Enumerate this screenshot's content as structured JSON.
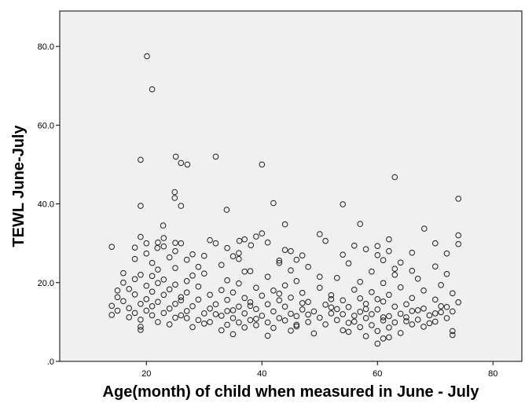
{
  "chart_data": {
    "type": "scatter",
    "title": "",
    "xlabel": "Age(month) of child when measured in June - July",
    "ylabel": "TEWL June-July",
    "xlim": [
      5,
      85
    ],
    "ylim": [
      0,
      89
    ],
    "x_ticks": [
      20,
      40,
      60,
      80
    ],
    "x_tick_labels": [
      "20",
      "40",
      "60",
      "80"
    ],
    "y_ticks": [
      0,
      20,
      40,
      60,
      80
    ],
    "y_tick_labels": [
      ".0",
      "20.0",
      "40.0",
      "60.0",
      "80.0"
    ],
    "grid": false,
    "colors": {
      "plot_background": "#f0f0f0",
      "marker_edge": "#1f1f1f",
      "axis": "#000000"
    },
    "marker": "open-circle",
    "points": [
      [
        20.1,
        77.5
      ],
      [
        21.0,
        69.1
      ],
      [
        25.1,
        52.0
      ],
      [
        32.0,
        52.0
      ],
      [
        19.0,
        51.2
      ],
      [
        26.0,
        50.4
      ],
      [
        27.1,
        50.0
      ],
      [
        40.0,
        50.0
      ],
      [
        63.0,
        46.8
      ],
      [
        24.9,
        43.0
      ],
      [
        24.9,
        41.5
      ],
      [
        74.0,
        41.3
      ],
      [
        42.0,
        40.2
      ],
      [
        54.0,
        39.9
      ],
      [
        19.0,
        39.5
      ],
      [
        26.0,
        39.5
      ],
      [
        33.9,
        38.5
      ],
      [
        57.0,
        34.9
      ],
      [
        44.0,
        34.8
      ],
      [
        22.9,
        34.5
      ],
      [
        68.1,
        33.7
      ],
      [
        40.0,
        32.5
      ],
      [
        50.0,
        32.3
      ],
      [
        74.0,
        32.0
      ],
      [
        39.0,
        31.7
      ],
      [
        62.0,
        31.0
      ],
      [
        19.0,
        31.6
      ],
      [
        23.0,
        31.3
      ],
      [
        31.0,
        30.8
      ],
      [
        36.1,
        30.6
      ],
      [
        51.0,
        30.6
      ],
      [
        41.0,
        30.2
      ],
      [
        22.0,
        30.2
      ],
      [
        25.0,
        30.1
      ],
      [
        20.0,
        30.0
      ],
      [
        26.0,
        30.0
      ],
      [
        32.0,
        30.0
      ],
      [
        38.1,
        29.5
      ],
      [
        56.0,
        29.4
      ],
      [
        60.0,
        29.3
      ],
      [
        14.0,
        29.1
      ],
      [
        18.0,
        28.9
      ],
      [
        21.9,
        28.8
      ],
      [
        34.0,
        28.8
      ],
      [
        44.0,
        28.3
      ],
      [
        45.0,
        28.0
      ],
      [
        62.0,
        28.0
      ],
      [
        66.0,
        27.6
      ],
      [
        20.0,
        27.4
      ],
      [
        28.0,
        27.2
      ],
      [
        47.0,
        26.9
      ],
      [
        54.0,
        27.1
      ],
      [
        72.0,
        27.4
      ],
      [
        35.0,
        26.7
      ],
      [
        24.0,
        26.4
      ],
      [
        36.0,
        26.0
      ],
      [
        27.0,
        25.8
      ],
      [
        43.0,
        25.6
      ],
      [
        61.0,
        25.7
      ],
      [
        64.0,
        25.1
      ],
      [
        21.0,
        25.0
      ],
      [
        55.0,
        24.9
      ],
      [
        33.0,
        24.5
      ],
      [
        48.0,
        24.0
      ],
      [
        70.0,
        24.1
      ],
      [
        25.0,
        23.7
      ],
      [
        63.0,
        23.5
      ],
      [
        22.0,
        23.3
      ],
      [
        45.0,
        23.1
      ],
      [
        37.0,
        22.8
      ],
      [
        59.0,
        22.8
      ],
      [
        16.0,
        22.4
      ],
      [
        30.0,
        22.3
      ],
      [
        72.0,
        22.2
      ],
      [
        19.0,
        22.0
      ],
      [
        28.0,
        21.8
      ],
      [
        41.0,
        21.5
      ],
      [
        53.0,
        21.2
      ],
      [
        67.0,
        21.0
      ],
      [
        18.0,
        20.9
      ],
      [
        23.0,
        20.8
      ],
      [
        34.0,
        20.6
      ],
      [
        46.0,
        20.4
      ],
      [
        57.0,
        20.2
      ],
      [
        22.0,
        19.9
      ],
      [
        36.0,
        19.8
      ],
      [
        61.0,
        19.9
      ],
      [
        25.0,
        19.5
      ],
      [
        44.0,
        19.3
      ],
      [
        71.0,
        19.4
      ],
      [
        20.0,
        19.2
      ],
      [
        29.0,
        19.0
      ],
      [
        39.0,
        18.7
      ],
      [
        50.0,
        18.7
      ],
      [
        64.0,
        18.8
      ],
      [
        17.0,
        18.4
      ],
      [
        24.0,
        18.3
      ],
      [
        33.0,
        18.1
      ],
      [
        42.0,
        18.0
      ],
      [
        56.0,
        18.2
      ],
      [
        68.0,
        18.0
      ],
      [
        21.0,
        17.7
      ],
      [
        27.0,
        17.5
      ],
      [
        35.0,
        17.5
      ],
      [
        47.0,
        17.4
      ],
      [
        59.0,
        17.6
      ],
      [
        73.0,
        17.3
      ],
      [
        18.0,
        17.0
      ],
      [
        23.0,
        16.9
      ],
      [
        31.0,
        16.9
      ],
      [
        40.0,
        16.7
      ],
      [
        52.0,
        16.8
      ],
      [
        62.0,
        16.9
      ],
      [
        15.0,
        16.3
      ],
      [
        26.0,
        16.3
      ],
      [
        37.0,
        16.1
      ],
      [
        45.0,
        16.2
      ],
      [
        57.0,
        16.0
      ],
      [
        66.0,
        16.1
      ],
      [
        20.0,
        15.8
      ],
      [
        29.0,
        15.7
      ],
      [
        34.0,
        15.6
      ],
      [
        43.0,
        15.5
      ],
      [
        54.0,
        15.5
      ],
      [
        70.0,
        15.7
      ],
      [
        16.0,
        15.3
      ],
      [
        22.0,
        15.1
      ],
      [
        38.0,
        15.0
      ],
      [
        48.0,
        15.1
      ],
      [
        61.0,
        15.2
      ],
      [
        74.0,
        15.0
      ],
      [
        19.0,
        14.6
      ],
      [
        25.0,
        14.6
      ],
      [
        32.0,
        14.5
      ],
      [
        41.0,
        14.5
      ],
      [
        51.0,
        14.4
      ],
      [
        58.0,
        14.6
      ],
      [
        65.0,
        14.5
      ],
      [
        14.0,
        14.1
      ],
      [
        21.0,
        14.0
      ],
      [
        28.0,
        14.0
      ],
      [
        36.0,
        13.9
      ],
      [
        44.0,
        13.9
      ],
      [
        55.0,
        13.8
      ],
      [
        63.0,
        13.9
      ],
      [
        71.0,
        14.0
      ],
      [
        17.0,
        13.5
      ],
      [
        24.0,
        13.4
      ],
      [
        31.0,
        13.4
      ],
      [
        39.0,
        13.3
      ],
      [
        47.0,
        13.2
      ],
      [
        53.0,
        13.3
      ],
      [
        60.0,
        13.2
      ],
      [
        68.0,
        13.4
      ],
      [
        15.0,
        12.9
      ],
      [
        20.0,
        12.9
      ],
      [
        27.0,
        12.8
      ],
      [
        34.0,
        12.8
      ],
      [
        42.0,
        12.7
      ],
      [
        49.0,
        12.7
      ],
      [
        57.0,
        12.6
      ],
      [
        66.0,
        12.8
      ],
      [
        73.0,
        12.7
      ],
      [
        18.0,
        12.3
      ],
      [
        23.0,
        12.3
      ],
      [
        30.0,
        12.2
      ],
      [
        37.0,
        12.2
      ],
      [
        45.0,
        12.1
      ],
      [
        52.0,
        12.2
      ],
      [
        59.0,
        12.0
      ],
      [
        64.0,
        12.1
      ],
      [
        70.0,
        12.2
      ],
      [
        14.0,
        11.8
      ],
      [
        21.0,
        11.7
      ],
      [
        26.0,
        11.7
      ],
      [
        33.0,
        11.6
      ],
      [
        40.0,
        11.6
      ],
      [
        46.0,
        11.5
      ],
      [
        56.0,
        11.6
      ],
      [
        62.0,
        11.5
      ],
      [
        69.0,
        11.7
      ],
      [
        17.0,
        11.2
      ],
      [
        25.0,
        11.1
      ],
      [
        35.0,
        11.0
      ],
      [
        43.0,
        11.0
      ],
      [
        50.0,
        11.1
      ],
      [
        58.0,
        11.0
      ],
      [
        65.0,
        11.2
      ],
      [
        72.0,
        11.0
      ],
      [
        19.0,
        10.6
      ],
      [
        29.0,
        10.5
      ],
      [
        38.0,
        10.5
      ],
      [
        44.0,
        10.4
      ],
      [
        53.0,
        10.5
      ],
      [
        61.0,
        10.4
      ],
      [
        67.0,
        10.6
      ],
      [
        22.0,
        10.0
      ],
      [
        31.0,
        10.0
      ],
      [
        36.0,
        9.9
      ],
      [
        41.0,
        9.9
      ],
      [
        48.0,
        10.0
      ],
      [
        55.0,
        9.8
      ],
      [
        63.0,
        9.9
      ],
      [
        70.0,
        10.1
      ],
      [
        24.0,
        9.4
      ],
      [
        34.0,
        9.3
      ],
      [
        39.0,
        9.2
      ],
      [
        46.0,
        9.3
      ],
      [
        51.0,
        9.4
      ],
      [
        59.0,
        9.2
      ],
      [
        66.0,
        9.4
      ],
      [
        19.0,
        8.8
      ],
      [
        28.0,
        8.7
      ],
      [
        37.0,
        8.6
      ],
      [
        42.0,
        8.5
      ],
      [
        57.0,
        8.7
      ],
      [
        62.0,
        8.6
      ],
      [
        68.0,
        8.8
      ],
      [
        19.0,
        8.0
      ],
      [
        33.0,
        7.9
      ],
      [
        45.0,
        7.8
      ],
      [
        54.0,
        7.9
      ],
      [
        60.0,
        7.7
      ],
      [
        73.0,
        7.7
      ],
      [
        35.0,
        6.9
      ],
      [
        49.0,
        7.1
      ],
      [
        64.0,
        7.2
      ],
      [
        41.0,
        6.5
      ],
      [
        58.0,
        6.4
      ],
      [
        61.0,
        5.8
      ],
      [
        73.0,
        6.7
      ],
      [
        60.0,
        4.5
      ],
      [
        62.0,
        6.1
      ],
      [
        55.0,
        7.5
      ],
      [
        30.0,
        9.6
      ],
      [
        27.0,
        11.0
      ],
      [
        65.0,
        10.2
      ],
      [
        48.0,
        11.9
      ],
      [
        52.0,
        13.7
      ],
      [
        38.0,
        14.1
      ],
      [
        26.0,
        15.5
      ],
      [
        60.0,
        15.8
      ],
      [
        43.0,
        17.2
      ],
      [
        35.0,
        13.0
      ],
      [
        47.0,
        14.8
      ],
      [
        67.0,
        13.0
      ],
      [
        71.0,
        12.5
      ],
      [
        56.0,
        10.1
      ],
      [
        46.0,
        8.9
      ],
      [
        39.0,
        10.8
      ],
      [
        32.0,
        12.0
      ],
      [
        54.0,
        12.0
      ],
      [
        58.0,
        13.3
      ],
      [
        61.0,
        11.2
      ],
      [
        69.0,
        9.7
      ],
      [
        72.0,
        13.8
      ],
      [
        36.0,
        27.5
      ],
      [
        37.0,
        31.0
      ],
      [
        43.0,
        25.0
      ],
      [
        46.0,
        25.8
      ],
      [
        58.0,
        28.5
      ],
      [
        60.0,
        27.0
      ],
      [
        63.0,
        22.0
      ],
      [
        66.0,
        23.0
      ],
      [
        70.0,
        30.0
      ],
      [
        74.0,
        29.8
      ],
      [
        50.0,
        21.5
      ],
      [
        52.0,
        15.8
      ],
      [
        29.0,
        24.0
      ],
      [
        30.0,
        26.8
      ],
      [
        27.0,
        20.4
      ],
      [
        38.0,
        22.9
      ],
      [
        25.0,
        28.0
      ],
      [
        23.0,
        29.2
      ],
      [
        21.0,
        21.7
      ],
      [
        18.0,
        26.0
      ],
      [
        16.0,
        20.0
      ],
      [
        15.0,
        18.0
      ]
    ]
  }
}
